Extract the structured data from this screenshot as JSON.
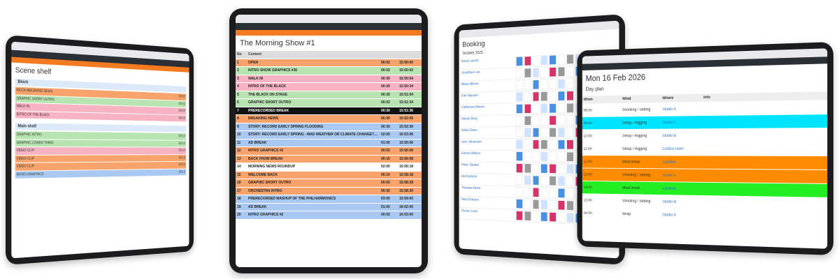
{
  "scene_shelf": {
    "title": "Scene shelf",
    "groups": [
      {
        "name": "Block",
        "items": [
          {
            "text": "ROCK BREAKING NEWS",
            "time": "00:02",
            "color": "#f7a36b"
          },
          {
            "text": "GRAPHIC SHORT OUTRO",
            "time": "00:02",
            "color": "#b7e4b0"
          },
          {
            "text": "WALK IN",
            "time": "00:02",
            "color": "#f7b3c2"
          },
          {
            "text": "INTRO OF THE BLACK",
            "time": "00:12",
            "color": "#f7b3c2"
          }
        ]
      },
      {
        "name": "Main shelf",
        "items": [
          {
            "text": "GRAPHIC INTRO",
            "time": "00:12",
            "color": "#b7e4b0"
          },
          {
            "text": "GRAPHIC LOWER THIRD",
            "time": "00:12",
            "color": "#b7e4b0"
          },
          {
            "text": "VIDEO CLIP",
            "time": "00:12",
            "color": "#f7b3c2"
          },
          {
            "text": "VIDEO CLIP",
            "time": "00:12",
            "color": "#f7a36b"
          },
          {
            "text": "VIDEO CLIP",
            "time": "00:12",
            "color": "#f7a36b"
          },
          {
            "text": "INTRO GRAPHICS",
            "time": "00:12",
            "color": "#a9c9f2"
          }
        ]
      }
    ]
  },
  "rundown": {
    "title": "The Morning Show #1",
    "columns": [
      "No",
      "Content"
    ],
    "rows": [
      {
        "n": "1",
        "text": "OPEN",
        "dur": "00:02",
        "time": "15:50:00",
        "color": "#f7a36b"
      },
      {
        "n": "2",
        "text": "INTRO SHOW GRAPHICS #36",
        "dur": "00:02",
        "time": "15:50:02",
        "color": "#b7e4b0"
      },
      {
        "n": "3",
        "text": "WALK IN",
        "dur": "00:30",
        "time": "15:50:04",
        "color": "#f7b3c2"
      },
      {
        "n": "4",
        "text": "INTRO OF THE BLACK",
        "dur": "00:30",
        "time": "15:50:34",
        "color": "#f7b3c2"
      },
      {
        "n": "5",
        "text": "THE BLACK ON STAGE",
        "dur": "00:30",
        "time": "15:51:04",
        "color": "#b7e4b0"
      },
      {
        "n": "6",
        "text": "GRAPHIC SHORT OUTRO",
        "dur": "00:02",
        "time": "15:51:34",
        "color": "#b7e4b0"
      },
      {
        "n": "7",
        "text": "PRERECORDED BREAK",
        "dur": "00:30",
        "time": "15:51:36",
        "color": "#111111"
      },
      {
        "n": "8",
        "text": "BREAKING NEWS",
        "dur": "00:30",
        "time": "15:52:06",
        "color": "#f7a36b"
      },
      {
        "n": "9",
        "text": "STORY: RECORD EARLY SPRING FLOODING",
        "dur": "00:30",
        "time": "15:52:36",
        "color": "#a9c9f2"
      },
      {
        "n": "10",
        "text": "STORY: RECORD EARLY SPRING - MAD WEATHER OR CLIMATE CHANGE? INTERVIEW W/ EXPERTS",
        "dur": "02:00",
        "time": "15:53:06",
        "color": "#a9c9f2"
      },
      {
        "n": "11",
        "text": "AD BREAK",
        "dur": "01:00",
        "time": "15:55:06",
        "color": "#a9c9f2"
      },
      {
        "n": "12",
        "text": "INTRO GRAPHICS #2",
        "dur": "00:02",
        "time": "15:56:06",
        "color": "#f7a36b"
      },
      {
        "n": "13",
        "text": "BACK FROM BREAK",
        "dur": "00:10",
        "time": "15:56:08",
        "color": "#f7a36b"
      },
      {
        "n": "14",
        "text": "MORNING NEWS ROUNDUP",
        "dur": "02:00",
        "time": "15:56:18",
        "color": "#ffffff"
      },
      {
        "n": "15",
        "text": "WELCOME BACK",
        "dur": "00:10",
        "time": "15:58:18",
        "color": "#f7a36b"
      },
      {
        "n": "16",
        "text": "GRAPHIC SHORT OUTRO",
        "dur": "00:02",
        "time": "15:58:28",
        "color": "#f7a36b"
      },
      {
        "n": "17",
        "text": "ORCHESTRA INTRO",
        "dur": "00:30",
        "time": "15:58:30",
        "color": "#f7a36b"
      },
      {
        "n": "18",
        "text": "PRERECORDED MASHUP OF THE PHILHARMONICS",
        "dur": "03:00",
        "time": "15:59:00",
        "color": "#a9c9f2"
      },
      {
        "n": "19",
        "text": "AD BREAK",
        "dur": "01:00",
        "time": "16:02:00",
        "color": "#a9c9f2"
      },
      {
        "n": "20",
        "text": "INTRO GRAPHICS #2",
        "dur": "00:02",
        "time": "16:03:00",
        "color": "#a9c9f2"
      }
    ]
  },
  "booking": {
    "title": "Booking",
    "month": "October 2025",
    "people": [
      "Anna Larsen",
      "Jonathan Lee",
      "Maria Nilsen",
      "Erik Hansen",
      "Catherine Moore",
      "Daniel Berg",
      "Sofia Olsen",
      "Lars Johansen",
      "Emma Wilson",
      "Peter Strand",
      "Ida Karlsen",
      "Thomas Holm",
      "Nina Eriksen",
      "Oscar Lund"
    ]
  },
  "day_plan": {
    "title": "Mon 16 Feb 2026",
    "subtitle": "Day plan",
    "columns": [
      "When",
      "What",
      "Where",
      "Info"
    ],
    "rows": [
      {
        "when": "08:00",
        "what": "Shooting / Setting",
        "where": "Studio A",
        "color": "#ffffff"
      },
      {
        "when": "09:00",
        "what": "Setup / Rigging",
        "where": "Studio A",
        "color": "#00e5ff"
      },
      {
        "when": "10:00",
        "what": "Setup / Rigging",
        "where": "Studio B",
        "color": "#ffffff"
      },
      {
        "when": "11:00",
        "what": "Setup / Rigging",
        "where": "Control room",
        "color": "#ffffff"
      },
      {
        "when": "12:00",
        "what": "Meal break",
        "where": "Canteen",
        "color": "#ff8c00"
      },
      {
        "when": "13:00",
        "what": "Shooting / Setting",
        "where": "Studio A",
        "color": "#ff8c00"
      },
      {
        "when": "14:00",
        "what": "Meal break",
        "where": "Canteen",
        "color": "#22ee22"
      },
      {
        "when": "15:00",
        "what": "Shooting / Setting",
        "where": "Studio B",
        "color": "#ffffff"
      },
      {
        "when": "16:00",
        "what": "Wrap",
        "where": "Studio A",
        "color": "#ffffff"
      }
    ]
  }
}
